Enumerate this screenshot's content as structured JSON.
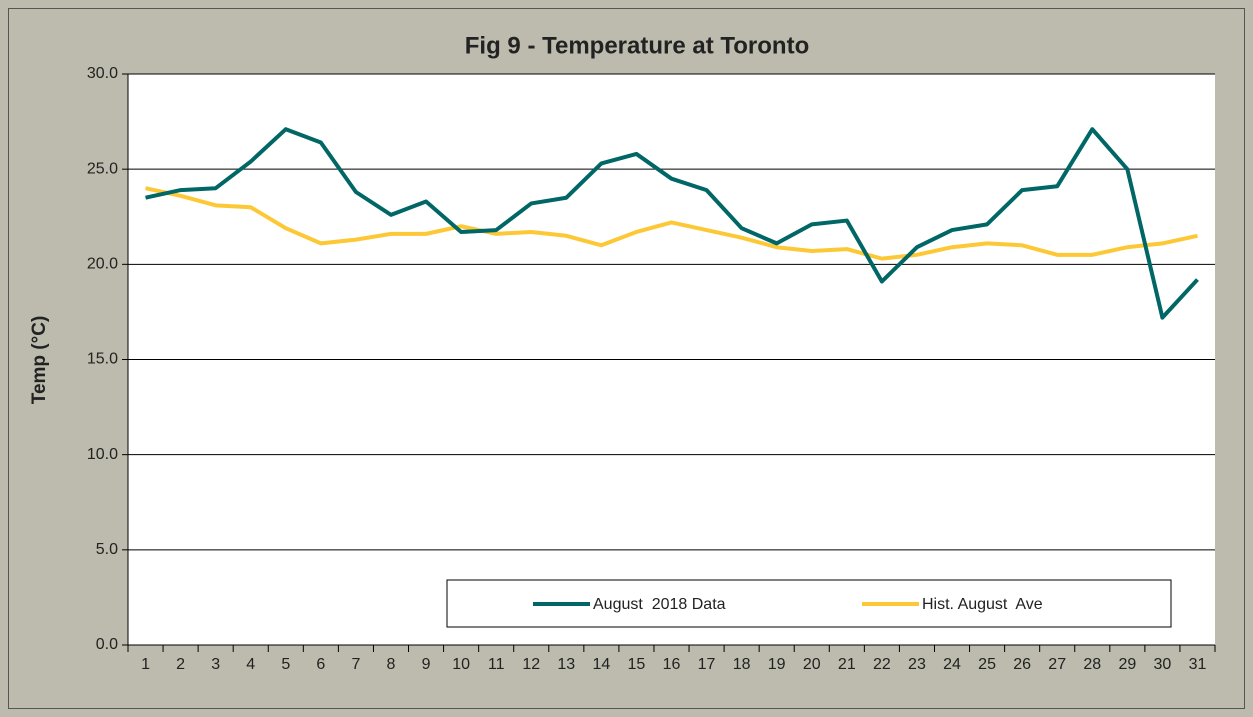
{
  "chart_data": {
    "type": "line",
    "title": "Fig 9 - Temperature at Toronto",
    "y_label": "Temp (°C)",
    "categories": [
      "1",
      "2",
      "3",
      "4",
      "5",
      "6",
      "7",
      "8",
      "9",
      "10",
      "11",
      "12",
      "13",
      "14",
      "15",
      "16",
      "17",
      "18",
      "19",
      "20",
      "21",
      "22",
      "23",
      "24",
      "25",
      "26",
      "27",
      "28",
      "29",
      "30",
      "31"
    ],
    "series": [
      {
        "name": "August  2018 Data",
        "color": "#006666",
        "values": [
          23.5,
          23.9,
          24.0,
          25.4,
          27.1,
          26.4,
          23.8,
          22.6,
          23.3,
          21.7,
          21.8,
          23.2,
          23.5,
          25.3,
          25.8,
          24.5,
          23.9,
          21.9,
          21.1,
          22.1,
          22.3,
          19.1,
          20.9,
          21.8,
          22.1,
          23.9,
          24.1,
          27.1,
          25.0,
          17.2,
          19.2
        ]
      },
      {
        "name": "Hist. August  Ave",
        "color": "#fdc835",
        "values": [
          24.0,
          23.6,
          23.1,
          23.0,
          21.9,
          21.1,
          21.3,
          21.6,
          21.6,
          22.0,
          21.6,
          21.7,
          21.5,
          21.0,
          21.7,
          22.2,
          21.8,
          21.4,
          20.9,
          20.7,
          20.8,
          20.3,
          20.5,
          20.9,
          21.1,
          21.0,
          20.5,
          20.5,
          20.9,
          21.1,
          21.5
        ]
      }
    ],
    "ylim": [
      0,
      30
    ],
    "yticks": [
      {
        "value": 0,
        "label": "0.0"
      },
      {
        "value": 5,
        "label": "5.0"
      },
      {
        "value": 10,
        "label": "10.0"
      },
      {
        "value": 15,
        "label": "15.0"
      },
      {
        "value": 20,
        "label": "20.0"
      },
      {
        "value": 25,
        "label": "25.0"
      },
      {
        "value": 30,
        "label": "30.0"
      }
    ],
    "grid": true,
    "legend": "bottom"
  }
}
